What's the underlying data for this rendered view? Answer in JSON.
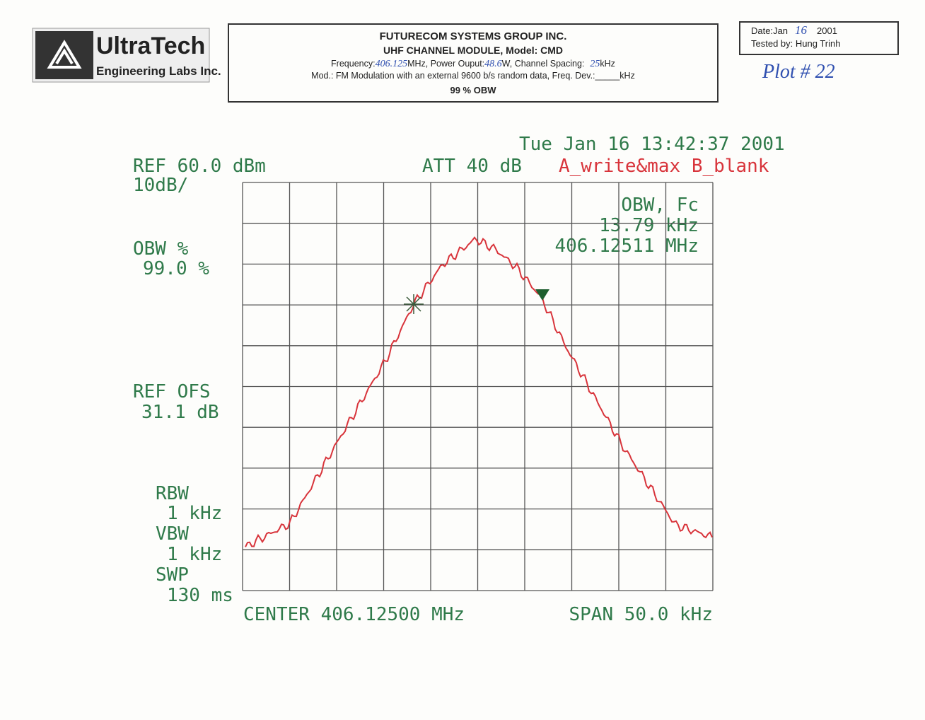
{
  "header": {
    "logo": {
      "name": "UltraTech",
      "subtitle": "Engineering Labs Inc."
    },
    "company": "FUTURECOM SYSTEMS GROUP INC.",
    "product": "UHF CHANNEL MODULE, Model: CMD",
    "line3": {
      "a": "Frequency:",
      "frequency": "406.125",
      "b": "MHz, Power Ouput:",
      "power": "48.6",
      "c": "W, Channel Spacing:",
      "spacing": "25",
      "d": "kHz"
    },
    "line4": "Mod.: FM Modulation with an external 9600 b/s random data, Freq. Dev.:_____kHz",
    "test": "99 % OBW",
    "date": {
      "a": "Date:Jan",
      "day": "16",
      "b": "2001"
    },
    "tested_by": "Tested by:  Hung Trinh",
    "plot_no": "Plot # 22"
  },
  "plot": {
    "timestamp": "Tue Jan 16 13:42:37 2001",
    "ref": "REF 60.0 dBm",
    "scale": "10dB/",
    "att": "ATT 40 dB",
    "trace_mode": "A_write&max B_blank",
    "obw_label": "OBW, Fc",
    "obw_value": "13.79 kHz",
    "fc": "406.12511 MHz",
    "obw_pct_label": "OBW %",
    "obw_pct": "99.0 %",
    "ref_ofs_label": "REF OFS",
    "ref_ofs": "31.1 dB",
    "rbw_label": "RBW",
    "rbw": "1 kHz",
    "vbw_label": "VBW",
    "vbw": "1 kHz",
    "swp_label": "SWP",
    "swp": "130 ms",
    "center": "CENTER 406.12500 MHz",
    "span": "SPAN 50.0 kHz"
  }
}
